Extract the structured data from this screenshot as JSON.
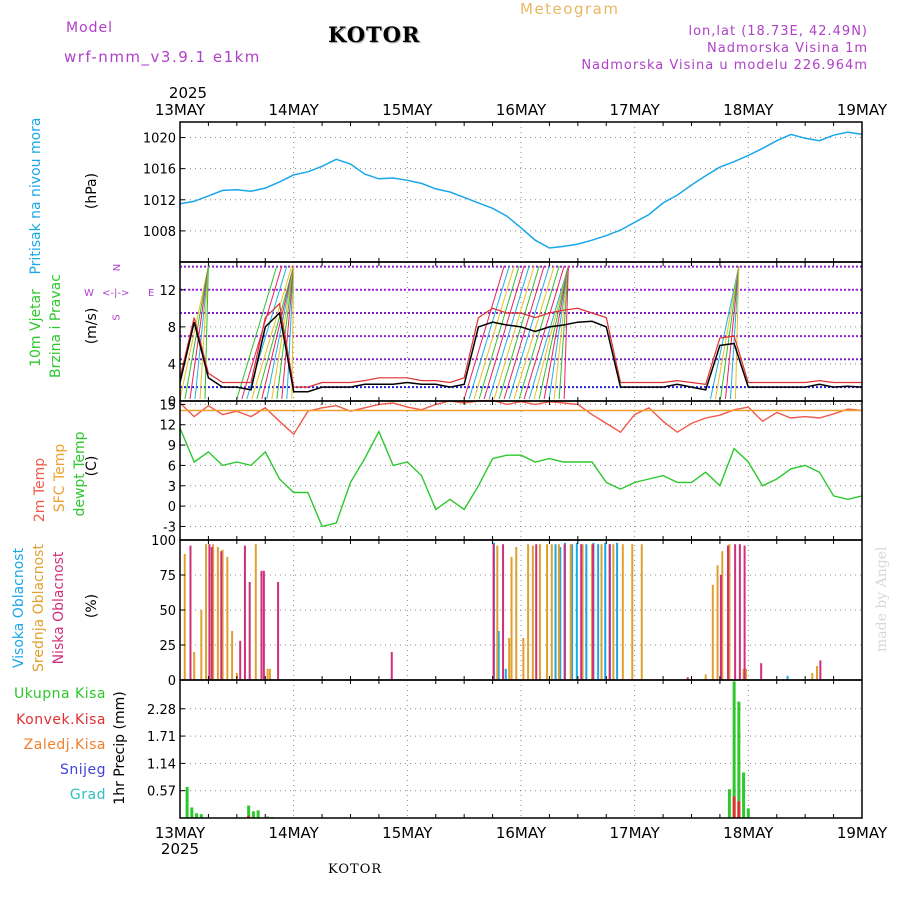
{
  "header": {
    "model_label": "Model",
    "model_name": "wrf-nmm_v3.9.1  e1km",
    "place": "KOTOR",
    "title": "Meteogram",
    "lonlat": "lon,lat (18.73E, 42.49N)",
    "elevation": "Nadmorska Visina 1m",
    "model_elevation": "Nadmorska Visina u modelu 226.964m",
    "footer_place": "KOTOR",
    "made_by": "made by Angel"
  },
  "time_axis": {
    "year": "2025",
    "labels": [
      "13MAY",
      "14MAY",
      "15MAY",
      "16MAY",
      "17MAY",
      "18MAY",
      "19MAY"
    ],
    "range_hours": [
      0,
      144
    ]
  },
  "colors": {
    "pressure": "#1aa7e8",
    "temp2m": "#f05a4a",
    "sfc_temp": "#f0a030",
    "dewpt": "#2ec82e",
    "high_cloud": "#1aa7e8",
    "mid_cloud": "#e0a030",
    "low_cloud": "#d0307a",
    "total_precip": "#2ec82e",
    "conv_precip": "#e03030",
    "wind_speed": "#000000",
    "wind_gust": "#e03030",
    "label_purple": "#b040c8",
    "grid": "#888888"
  },
  "panels": {
    "pressure": {
      "ylabel_name": "Pritisak na nivou mora",
      "ylabel_unit": "(hPa)"
    },
    "wind": {
      "ylabel_name1": "10m Vjetar",
      "ylabel_name2": "Brzina i Pravac",
      "ylabel_unit": "(m/s)",
      "compass_n": "N",
      "compass_e": "E",
      "compass_w": "W",
      "compass_s": "S"
    },
    "temp": {
      "ylabel_2m": "2m Temp",
      "ylabel_sfc": "SFC Temp",
      "ylabel_dew": "dewpt Temp",
      "ylabel_unit": "(C)"
    },
    "cloud": {
      "ylabel_high": "Visoka Oblacnost",
      "ylabel_mid": "Srednja Oblacnost",
      "ylabel_low": "Niska Oblacnost",
      "ylabel_unit": "(%)"
    },
    "precip": {
      "legend": [
        "Ukupna Kisa",
        "Konvek.Kisa",
        "Zaledj.Kisa",
        "Snijeg",
        "Grad"
      ],
      "legend_colors": [
        "#2ec82e",
        "#e03030",
        "#f08030",
        "#4040e0",
        "#30c0c0"
      ],
      "ylabel": "1hr Precip (mm)"
    }
  },
  "chart_data": [
    {
      "type": "line",
      "name": "pressure",
      "ylim": [
        1004,
        1022
      ],
      "yticks": [
        "1008",
        "1012",
        "1016",
        "1020"
      ],
      "ytick_values": [
        1008,
        1012,
        1016,
        1020
      ],
      "x_hours": [
        0,
        3,
        6,
        9,
        12,
        15,
        18,
        21,
        24,
        27,
        30,
        33,
        36,
        39,
        42,
        45,
        48,
        51,
        54,
        57,
        60,
        63,
        66,
        69,
        72,
        75,
        78,
        81,
        84,
        87,
        90,
        93,
        96,
        99,
        102,
        105,
        108,
        111,
        114,
        117,
        120,
        123,
        126,
        129,
        132,
        135,
        138,
        141,
        144
      ],
      "values": [
        1011.5,
        1011.8,
        1012.5,
        1013.2,
        1013.3,
        1013.1,
        1013.5,
        1014.3,
        1015.2,
        1015.6,
        1016.3,
        1017.2,
        1016.6,
        1015.3,
        1014.7,
        1014.8,
        1014.5,
        1014.1,
        1013.4,
        1013.0,
        1012.3,
        1011.6,
        1010.9,
        1009.9,
        1008.4,
        1006.8,
        1005.8,
        1006.0,
        1006.3,
        1006.8,
        1007.4,
        1008.1,
        1009.1,
        1010.1,
        1011.6,
        1012.6,
        1013.9,
        1015.1,
        1016.2,
        1016.9,
        1017.7,
        1018.6,
        1019.6,
        1020.4,
        1019.9,
        1019.6,
        1020.3,
        1020.7,
        1020.4
      ]
    },
    {
      "type": "line",
      "name": "wind",
      "ylim": [
        0,
        15
      ],
      "yticks": [
        "0",
        "4",
        "8",
        "12"
      ],
      "ytick_values": [
        0,
        4,
        8,
        12
      ],
      "x_hours": [
        0,
        3,
        6,
        9,
        12,
        15,
        18,
        21,
        24,
        27,
        30,
        33,
        36,
        39,
        42,
        45,
        48,
        51,
        54,
        57,
        60,
        63,
        66,
        69,
        72,
        75,
        78,
        81,
        84,
        87,
        90,
        93,
        96,
        99,
        102,
        105,
        108,
        111,
        114,
        117,
        120,
        123,
        126,
        129,
        132,
        135,
        138,
        141,
        144
      ],
      "speed": [
        2.0,
        8.5,
        2.5,
        1.5,
        1.5,
        1.2,
        8.0,
        9.5,
        1.0,
        1.0,
        1.5,
        1.5,
        1.5,
        1.8,
        1.8,
        1.8,
        2.0,
        1.8,
        1.8,
        1.5,
        1.8,
        8.0,
        8.5,
        8.2,
        8.0,
        7.5,
        8.0,
        8.2,
        8.5,
        8.6,
        8.0,
        1.5,
        1.5,
        1.5,
        1.5,
        1.8,
        1.5,
        1.2,
        6.0,
        6.2,
        1.5,
        1.5,
        1.5,
        1.5,
        1.5,
        1.8,
        1.5,
        1.6,
        1.5
      ],
      "gust": [
        2.5,
        9.0,
        3.0,
        2.0,
        2.0,
        2.0,
        9.0,
        10.5,
        1.5,
        1.5,
        2.0,
        2.0,
        2.0,
        2.2,
        2.5,
        2.5,
        2.5,
        2.2,
        2.2,
        2.0,
        2.5,
        9.0,
        10.0,
        9.5,
        9.5,
        9.0,
        9.5,
        9.8,
        10.0,
        9.5,
        9.0,
        2.0,
        2.0,
        2.0,
        2.0,
        2.2,
        2.0,
        1.8,
        6.8,
        7.0,
        2.0,
        2.0,
        2.0,
        2.0,
        2.0,
        2.2,
        2.0,
        2.0,
        2.0
      ]
    },
    {
      "type": "line",
      "name": "temperature",
      "ylim": [
        -5,
        15.5
      ],
      "yticks": [
        "-3",
        "0",
        "3",
        "6",
        "9",
        "12",
        "15"
      ],
      "ytick_values": [
        -3,
        0,
        3,
        6,
        9,
        12,
        15
      ],
      "x_hours": [
        0,
        3,
        6,
        9,
        12,
        15,
        18,
        21,
        24,
        27,
        30,
        33,
        36,
        39,
        42,
        45,
        48,
        51,
        54,
        57,
        60,
        63,
        66,
        69,
        72,
        75,
        78,
        81,
        84,
        87,
        90,
        93,
        96,
        99,
        102,
        105,
        108,
        111,
        114,
        117,
        120,
        123,
        126,
        129,
        132,
        135,
        138,
        141,
        144
      ],
      "series": [
        {
          "name": "2m Temp",
          "values": [
            15.2,
            13.2,
            14.8,
            13.5,
            14.0,
            13.2,
            14.5,
            12.5,
            10.6,
            14.0,
            14.5,
            14.8,
            14.0,
            14.5,
            15.0,
            15.2,
            14.6,
            14.2,
            15.0,
            15.5,
            15.2,
            15.5,
            15.6,
            15.0,
            15.4,
            15.0,
            15.4,
            15.2,
            15.0,
            13.5,
            12.2,
            10.9,
            13.5,
            14.5,
            12.5,
            10.9,
            12.2,
            13.0,
            13.4,
            14.2,
            14.6,
            12.5,
            13.8,
            13.0,
            13.2,
            13.0,
            13.6,
            14.3,
            14.1
          ]
        },
        {
          "name": "SFC Temp",
          "values": [
            14.1,
            14.1,
            14.1,
            14.1,
            14.1,
            14.1,
            14.1,
            14.1,
            14.1,
            14.1,
            14.1,
            14.1,
            14.1,
            14.1,
            14.1,
            14.1,
            14.1,
            14.1,
            14.1,
            14.1,
            14.1,
            14.1,
            14.1,
            14.1,
            14.1,
            14.1,
            14.1,
            14.1,
            14.1,
            14.1,
            14.1,
            14.1,
            14.1,
            14.1,
            14.1,
            14.1,
            14.1,
            14.1,
            14.1,
            14.1,
            14.1,
            14.1,
            14.1,
            14.1,
            14.1,
            14.1,
            14.1,
            14.1,
            14.1
          ]
        },
        {
          "name": "dewpt Temp",
          "values": [
            11.5,
            6.5,
            8.0,
            6.0,
            6.5,
            6.0,
            8.0,
            4.0,
            2.0,
            2.0,
            -3.0,
            -2.5,
            3.5,
            7.0,
            11.0,
            6.0,
            6.5,
            4.5,
            -0.5,
            1.0,
            -0.5,
            3.0,
            7.0,
            7.5,
            7.5,
            6.5,
            7.0,
            6.5,
            6.5,
            6.5,
            3.5,
            2.5,
            3.5,
            4.0,
            4.5,
            3.5,
            3.5,
            5.0,
            3.0,
            8.5,
            6.5,
            3.0,
            4.0,
            5.5,
            6.0,
            5.0,
            1.5,
            1.0,
            1.5
          ]
        }
      ]
    },
    {
      "type": "bar",
      "name": "cloud",
      "ylim": [
        0,
        100
      ],
      "yticks": [
        "0",
        "25",
        "50",
        "75",
        "100"
      ],
      "ytick_values": [
        0,
        25,
        50,
        75,
        100
      ],
      "series": [
        {
          "name": "Visoka Oblacnost",
          "bars": [
            [
              66.5,
              98
            ],
            [
              67.5,
              35
            ],
            [
              69,
              8
            ],
            [
              79.5,
              97
            ],
            [
              80.5,
              95
            ],
            [
              81.5,
              98
            ],
            [
              83,
              97
            ],
            [
              84,
              98
            ],
            [
              86,
              97
            ],
            [
              87.5,
              98
            ],
            [
              88.5,
              97
            ],
            [
              90,
              98
            ],
            [
              91,
              97
            ],
            [
              92.5,
              98
            ],
            [
              128.5,
              3
            ]
          ]
        },
        {
          "name": "Srednja Oblacnost",
          "bars": [
            [
              1,
              90
            ],
            [
              3,
              20
            ],
            [
              4.5,
              50
            ],
            [
              5.5,
              97
            ],
            [
              7,
              97
            ],
            [
              8,
              95
            ],
            [
              9,
              93
            ],
            [
              10,
              88
            ],
            [
              11,
              35
            ],
            [
              12,
              5
            ],
            [
              16,
              97
            ],
            [
              18.5,
              8
            ],
            [
              19,
              8
            ],
            [
              67,
              96
            ],
            [
              69.5,
              30
            ],
            [
              70,
              88
            ],
            [
              71,
              95
            ],
            [
              72.5,
              30
            ],
            [
              73.5,
              97
            ],
            [
              74.5,
              96
            ],
            [
              76,
              97
            ],
            [
              77.5,
              97
            ],
            [
              78.5,
              97
            ],
            [
              80,
              97
            ],
            [
              82.5,
              97
            ],
            [
              85,
              97
            ],
            [
              87,
              97
            ],
            [
              89,
              97
            ],
            [
              91.5,
              97
            ],
            [
              93.5,
              97
            ],
            [
              95.5,
              97
            ],
            [
              97.5,
              97
            ],
            [
              111,
              4
            ],
            [
              112.5,
              68
            ],
            [
              113.5,
              82
            ],
            [
              114.5,
              92
            ],
            [
              116,
              97
            ],
            [
              119,
              8
            ],
            [
              119.5,
              8
            ],
            [
              133.5,
              5
            ],
            [
              134.5,
              10
            ]
          ]
        },
        {
          "name": "Niska Oblacnost",
          "bars": [
            [
              2,
              96
            ],
            [
              6,
              97
            ],
            [
              6.5,
              95
            ],
            [
              8.5,
              92
            ],
            [
              12.5,
              28
            ],
            [
              13.5,
              96
            ],
            [
              14.5,
              70
            ],
            [
              17,
              78
            ],
            [
              17.5,
              78
            ],
            [
              20.5,
              70
            ],
            [
              44.5,
              20
            ],
            [
              66,
              97
            ],
            [
              68,
              97
            ],
            [
              75,
              97
            ],
            [
              81,
              97
            ],
            [
              84.5,
              97
            ],
            [
              87,
              97
            ],
            [
              90.5,
              97
            ],
            [
              107,
              2
            ],
            [
              114,
              75
            ],
            [
              115.5,
              96
            ],
            [
              117,
              97
            ],
            [
              118,
              97
            ],
            [
              119,
              96
            ],
            [
              122.5,
              12
            ],
            [
              135,
              14
            ]
          ]
        }
      ]
    },
    {
      "type": "bar",
      "name": "precipitation",
      "ylim": [
        0,
        2.88
      ],
      "yticks": [
        "0.57",
        "1.14",
        "1.71",
        "2.28"
      ],
      "ytick_values": [
        0.57,
        1.14,
        1.71,
        2.28
      ],
      "series": [
        {
          "name": "Ukupna Kisa",
          "bars": [
            [
              1.5,
              0.65
            ],
            [
              2.5,
              0.22
            ],
            [
              3.5,
              0.1
            ],
            [
              4.5,
              0.08
            ],
            [
              14.5,
              0.26
            ],
            [
              15.5,
              0.14
            ],
            [
              16.5,
              0.16
            ],
            [
              18.5,
              0.03
            ],
            [
              19.5,
              0.02
            ],
            [
              116,
              0.6
            ],
            [
              117,
              2.85
            ],
            [
              118,
              2.43
            ],
            [
              119,
              0.95
            ],
            [
              120,
              0.2
            ]
          ]
        },
        {
          "name": "Konvek.Kisa",
          "bars": [
            [
              14.5,
              0.05
            ],
            [
              117,
              0.45
            ],
            [
              118,
              0.35
            ]
          ]
        }
      ]
    }
  ]
}
